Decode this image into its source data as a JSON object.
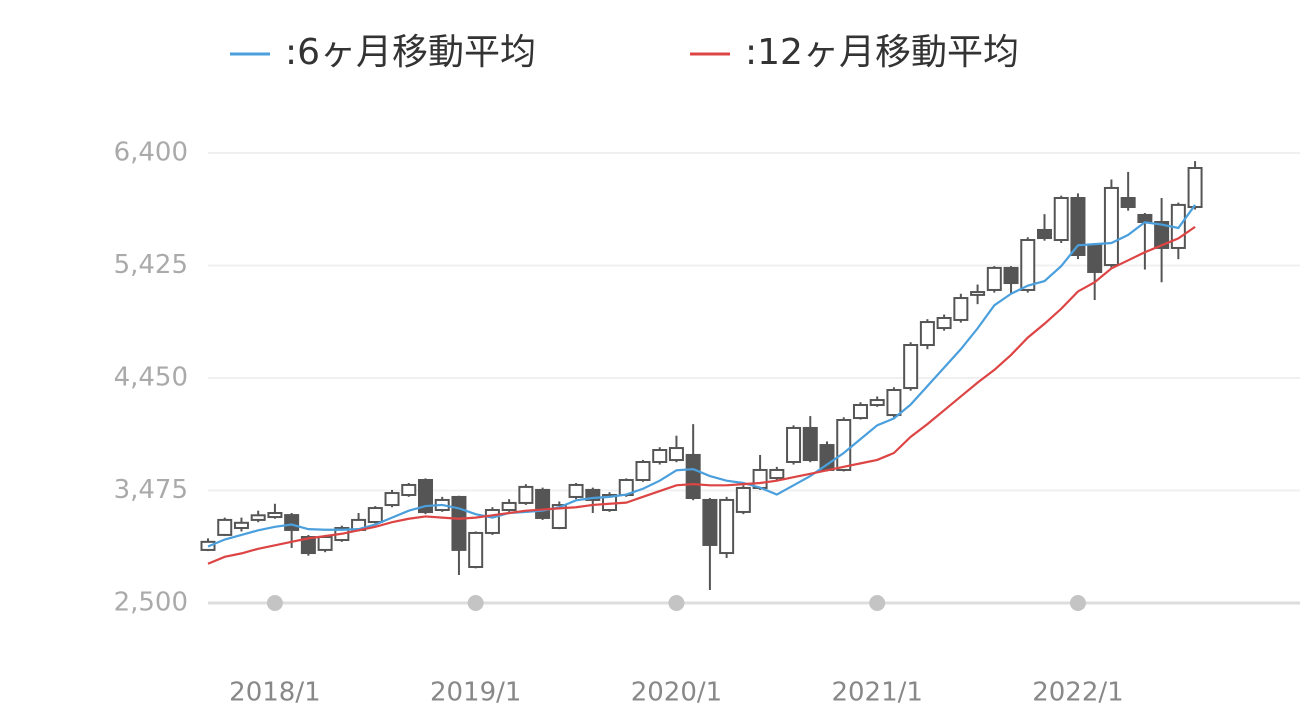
{
  "chart_data": {
    "type": "candlestick",
    "categories": [
      null,
      null,
      null,
      null,
      "2018/1",
      null,
      null,
      null,
      null,
      null,
      null,
      null,
      null,
      null,
      null,
      null,
      "2019/1",
      null,
      null,
      null,
      null,
      null,
      null,
      null,
      null,
      null,
      null,
      null,
      "2020/1",
      null,
      null,
      null,
      null,
      null,
      null,
      null,
      null,
      null,
      null,
      null,
      "2021/1",
      null,
      null,
      null,
      null,
      null,
      null,
      null,
      null,
      null,
      null,
      null,
      "2022/1",
      null,
      null,
      null,
      null,
      null,
      null,
      null
    ],
    "open": [
      2960,
      3090,
      3150,
      3220,
      3245,
      3262,
      3072,
      2960,
      3046,
      3133,
      3202,
      3349,
      3436,
      3566,
      3306,
      3419,
      2812,
      3107,
      3306,
      3367,
      3480,
      3150,
      3419,
      3480,
      3306,
      3436,
      3566,
      3722,
      3739,
      3783,
      3393,
      2933,
      3289,
      3497,
      3583,
      3722,
      4017,
      3869,
      3653,
      4103,
      4216,
      4129,
      4363,
      4736,
      4883,
      4953,
      5170,
      5213,
      5404,
      5213,
      5733,
      5646,
      6010,
      5603,
      5429,
      6010,
      5863,
      5802,
      5577,
      5932
    ],
    "high": [
      3060,
      3240,
      3240,
      3300,
      3360,
      3280,
      3090,
      3090,
      3170,
      3280,
      3340,
      3480,
      3540,
      3580,
      3420,
      3430,
      3120,
      3330,
      3400,
      3530,
      3500,
      3380,
      3540,
      3500,
      3460,
      3580,
      3740,
      3850,
      3950,
      4050,
      3410,
      3420,
      3520,
      3783,
      3680,
      4040,
      4120,
      3900,
      4110,
      4240,
      4290,
      4370,
      4760,
      4960,
      5000,
      5180,
      5260,
      5420,
      5420,
      5670,
      5870,
      6030,
      6050,
      5620,
      6170,
      6236,
      5880,
      6010,
      5970,
      6330
    ],
    "low": [
      2950,
      3080,
      3120,
      3200,
      3230,
      2977,
      2910,
      2940,
      3030,
      3120,
      3190,
      3330,
      3420,
      3270,
      3290,
      2743,
      2800,
      3090,
      3290,
      3350,
      3220,
      3140,
      3400,
      3280,
      3290,
      3420,
      3550,
      3700,
      3720,
      3390,
      2613,
      2890,
      3270,
      3480,
      3560,
      3700,
      3720,
      3640,
      3640,
      4090,
      4200,
      4110,
      4340,
      4700,
      4860,
      4930,
      5090,
      5190,
      5180,
      5190,
      5640,
      5620,
      5480,
      5126,
      5400,
      5900,
      5390,
      5280,
      5480,
      5910
    ],
    "close": [
      3030,
      3220,
      3195,
      3260,
      3280,
      3133,
      2933,
      3072,
      3150,
      3220,
      3323,
      3453,
      3523,
      3288,
      3393,
      2960,
      3107,
      3306,
      3367,
      3506,
      3237,
      3349,
      3523,
      3393,
      3436,
      3566,
      3722,
      3826,
      3843,
      3410,
      3003,
      3393,
      3497,
      3653,
      3653,
      4017,
      3739,
      3653,
      4086,
      4216,
      4259,
      4346,
      4736,
      4935,
      4970,
      5143,
      5195,
      5404,
      5273,
      5646,
      5663,
      6010,
      5516,
      5369,
      6097,
      5932,
      5802,
      5577,
      5950,
      6270
    ],
    "up_color": "#ffffff",
    "down_color": "#555555",
    "edge_color": "#555555",
    "series": [
      {
        "name": ":6ヶ月移動平均",
        "color": "#4a9fdc",
        "values": [
          2990,
          3050,
          3090,
          3130,
          3160,
          3180,
          3140,
          3135,
          3135,
          3140,
          3180,
          3240,
          3300,
          3340,
          3350,
          3320,
          3270,
          3240,
          3280,
          3290,
          3300,
          3330,
          3390,
          3410,
          3420,
          3440,
          3490,
          3560,
          3650,
          3660,
          3600,
          3560,
          3540,
          3500,
          3440,
          3520,
          3600,
          3700,
          3800,
          3920,
          4040,
          4100,
          4220,
          4380,
          4540,
          4700,
          4880,
          5080,
          5180,
          5250,
          5290,
          5420,
          5600,
          5610,
          5620,
          5690,
          5800,
          5780,
          5750,
          5950
        ]
      },
      {
        "name": ":12ヶ月移動平均",
        "color": "#dd4444",
        "values": [
          2840,
          2900,
          2930,
          2970,
          3000,
          3030,
          3060,
          3080,
          3100,
          3130,
          3160,
          3200,
          3230,
          3250,
          3240,
          3230,
          3240,
          3260,
          3280,
          3300,
          3310,
          3320,
          3330,
          3350,
          3360,
          3370,
          3420,
          3470,
          3520,
          3530,
          3520,
          3520,
          3530,
          3540,
          3560,
          3590,
          3620,
          3650,
          3680,
          3710,
          3740,
          3800,
          3940,
          4050,
          4170,
          4290,
          4410,
          4520,
          4650,
          4800,
          4920,
          5050,
          5200,
          5280,
          5400,
          5470,
          5540,
          5600,
          5660,
          5760
        ]
      }
    ],
    "ylim": [
      2500,
      6400
    ],
    "yticks": [
      {
        "value": 2500,
        "label": "2,500"
      },
      {
        "value": 3475,
        "label": "3,475"
      },
      {
        "value": 4450,
        "label": "4,450"
      },
      {
        "value": 5425,
        "label": "5,425"
      },
      {
        "value": 6400,
        "label": "6,400"
      }
    ],
    "grid": true
  }
}
